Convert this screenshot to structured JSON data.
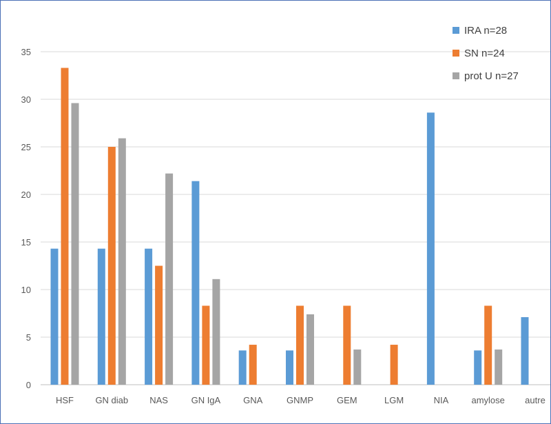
{
  "chart_data": {
    "type": "bar",
    "title": "",
    "xlabel": "",
    "ylabel": "",
    "ylim": [
      0,
      35
    ],
    "yticks": [
      0,
      5,
      10,
      15,
      20,
      25,
      30,
      35
    ],
    "grid": true,
    "legend_position": "top-right",
    "categories": [
      "HSF",
      "GN diab",
      "NAS",
      "GN IgA",
      "GNA",
      "GNMP",
      "GEM",
      "LGM",
      "NIA",
      "amylose",
      "autre"
    ],
    "series": [
      {
        "name": "IRA n=28",
        "color": "#5b9bd5",
        "values": [
          14.3,
          14.3,
          14.3,
          21.4,
          3.6,
          3.6,
          0,
          0,
          28.6,
          3.6,
          7.1
        ]
      },
      {
        "name": "SN n=24",
        "color": "#ed7d31",
        "values": [
          33.3,
          25.0,
          12.5,
          8.3,
          4.2,
          8.3,
          8.3,
          4.2,
          0,
          8.3,
          0
        ]
      },
      {
        "name": "prot U n=27",
        "color": "#a5a5a5",
        "values": [
          29.6,
          25.9,
          22.2,
          11.1,
          0,
          7.4,
          3.7,
          0,
          0,
          3.7,
          0
        ]
      }
    ]
  }
}
